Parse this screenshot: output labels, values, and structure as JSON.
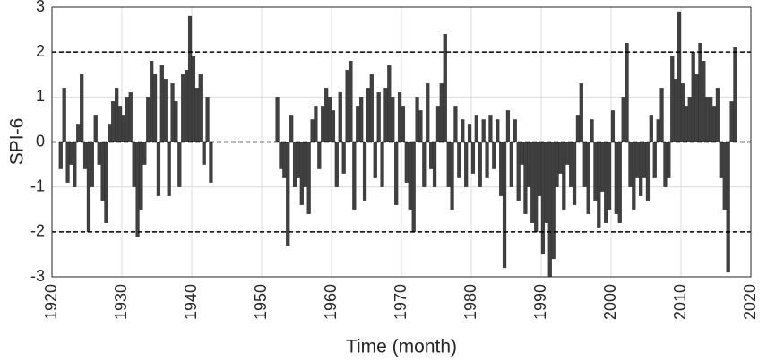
{
  "chart_data": {
    "type": "bar",
    "x_label": "Time (month)",
    "y_label": "SPI-6",
    "color": "#404040",
    "grid": true,
    "ref_lines": [
      -2,
      0,
      2
    ],
    "xlim": [
      1920,
      2020
    ],
    "xticks": [
      1920,
      1930,
      1940,
      1950,
      1960,
      1970,
      1980,
      1990,
      2000,
      2010,
      2020
    ],
    "ylim": [
      -3,
      3
    ],
    "yticks": [
      -3,
      -2,
      -1,
      0,
      1,
      2,
      3
    ],
    "x": [
      1921.0,
      1921.5,
      1922.0,
      1922.5,
      1923.0,
      1923.5,
      1924.0,
      1924.5,
      1925.0,
      1925.5,
      1926.0,
      1926.5,
      1927.0,
      1927.5,
      1928.0,
      1928.5,
      1929.0,
      1929.5,
      1930.0,
      1930.5,
      1931.0,
      1931.5,
      1932.0,
      1932.5,
      1933.0,
      1933.5,
      1934.0,
      1934.5,
      1935.0,
      1935.5,
      1936.0,
      1936.5,
      1937.0,
      1937.5,
      1938.0,
      1938.5,
      1939.0,
      1939.5,
      1940.0,
      1940.5,
      1941.0,
      1941.5,
      1942.0,
      1942.5,
      1952.0,
      1952.5,
      1953.0,
      1953.5,
      1954.0,
      1954.5,
      1955.0,
      1955.5,
      1956.0,
      1956.5,
      1957.0,
      1957.5,
      1958.0,
      1958.5,
      1959.0,
      1959.5,
      1960.0,
      1960.5,
      1961.0,
      1961.5,
      1962.0,
      1962.5,
      1963.0,
      1963.5,
      1964.0,
      1964.5,
      1965.0,
      1965.5,
      1966.0,
      1966.5,
      1967.0,
      1967.5,
      1968.0,
      1968.5,
      1969.0,
      1969.5,
      1970.0,
      1970.5,
      1971.0,
      1971.5,
      1972.0,
      1972.5,
      1973.0,
      1973.5,
      1974.0,
      1974.5,
      1975.0,
      1975.5,
      1976.0,
      1976.5,
      1977.0,
      1977.5,
      1978.0,
      1978.5,
      1979.0,
      1979.5,
      1980.0,
      1980.5,
      1981.0,
      1981.5,
      1982.0,
      1982.5,
      1983.0,
      1983.5,
      1984.0,
      1984.5,
      1985.0,
      1985.5,
      1986.0,
      1986.5,
      1987.0,
      1987.5,
      1988.0,
      1988.5,
      1989.0,
      1989.5,
      1990.0,
      1990.5,
      1991.0,
      1991.5,
      1992.0,
      1992.5,
      1993.0,
      1993.5,
      1994.0,
      1994.5,
      1995.0,
      1995.5,
      1996.0,
      1996.5,
      1997.0,
      1997.5,
      1998.0,
      1998.5,
      1999.0,
      1999.5,
      2000.0,
      2000.5,
      2001.0,
      2001.5,
      2002.0,
      2002.5,
      2003.0,
      2003.5,
      2004.0,
      2004.5,
      2005.0,
      2005.5,
      2006.0,
      2006.5,
      2007.0,
      2007.5,
      2008.0,
      2008.5,
      2009.0,
      2009.5,
      2010.0,
      2010.5,
      2011.0,
      2011.5,
      2012.0,
      2012.5,
      2013.0,
      2013.5,
      2014.0,
      2014.5,
      2015.0,
      2015.5,
      2016.0,
      2016.5,
      2017.0,
      2017.5
    ],
    "values": [
      -0.6,
      1.2,
      -0.9,
      -0.5,
      -1.0,
      0.4,
      1.5,
      -0.6,
      -2.0,
      -1.0,
      0.6,
      -0.5,
      -1.3,
      -1.8,
      0.4,
      0.9,
      1.2,
      0.8,
      0.6,
      1.0,
      1.1,
      -1.0,
      -2.1,
      -1.5,
      -0.5,
      1.0,
      1.8,
      1.5,
      -1.2,
      1.7,
      1.4,
      -1.2,
      1.3,
      0.9,
      -1.0,
      1.5,
      1.6,
      2.8,
      1.9,
      1.2,
      1.5,
      -0.5,
      1.0,
      -0.9,
      1.0,
      -0.6,
      -0.8,
      -2.3,
      0.6,
      -1.0,
      -0.8,
      -1.4,
      -1.0,
      -1.6,
      0.5,
      0.8,
      -0.6,
      0.8,
      1.2,
      1.0,
      0.7,
      -1.0,
      1.1,
      -0.7,
      1.6,
      1.8,
      -1.5,
      0.8,
      1.0,
      -1.3,
      1.2,
      1.5,
      -0.8,
      1.1,
      -1.0,
      1.2,
      1.7,
      1.0,
      -1.4,
      1.1,
      0.8,
      -0.9,
      -1.5,
      -2.0,
      1.0,
      0.7,
      -1.0,
      1.3,
      -0.6,
      -1.0,
      0.8,
      1.3,
      2.4,
      -1.0,
      -1.5,
      0.8,
      -0.8,
      0.5,
      -1.0,
      0.4,
      -0.7,
      0.6,
      -1.0,
      0.5,
      -0.8,
      0.6,
      -0.6,
      0.5,
      -1.2,
      -2.8,
      0.7,
      -1.0,
      0.5,
      -1.3,
      -0.5,
      -1.6,
      -1.0,
      -1.8,
      -2.0,
      -1.2,
      -2.5,
      -1.8,
      -3.0,
      -2.6,
      -1.0,
      -0.7,
      -1.5,
      -0.5,
      -1.0,
      -1.4,
      0.6,
      1.3,
      -1.0,
      -1.6,
      0.5,
      -1.3,
      -1.9,
      -1.1,
      -1.8,
      -1.5,
      0.7,
      -1.6,
      -1.8,
      1.0,
      2.2,
      -1.0,
      -1.5,
      -0.8,
      -1.2,
      -0.8,
      -1.3,
      0.6,
      -0.8,
      0.5,
      1.2,
      -1.0,
      -0.8,
      1.9,
      1.4,
      2.9,
      1.3,
      0.8,
      1.0,
      2.0,
      1.5,
      2.2,
      1.8,
      1.0,
      1.0,
      0.8,
      1.2,
      -0.8,
      -1.5,
      -2.9,
      0.9,
      2.1
    ]
  }
}
